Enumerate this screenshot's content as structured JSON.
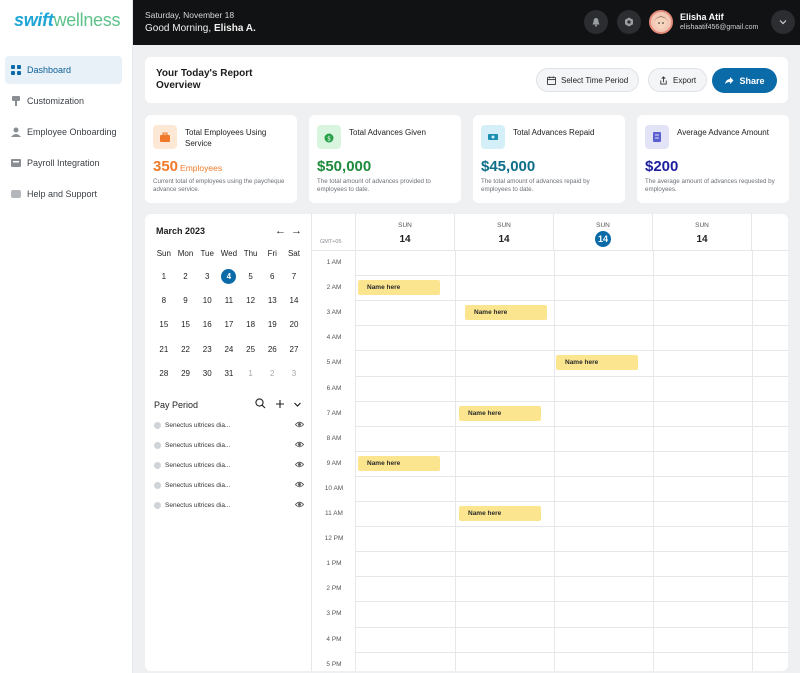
{
  "brand": {
    "part1": "swift",
    "part2": "wellness"
  },
  "sidebar": {
    "items": [
      {
        "label": "Dashboard",
        "icon": "grid-icon"
      },
      {
        "label": "Customization",
        "icon": "brush-icon"
      },
      {
        "label": "Employee Onboarding",
        "icon": "user-icon"
      },
      {
        "label": "Payroll Integration",
        "icon": "plug-icon"
      },
      {
        "label": "Help and Support",
        "icon": "support-icon"
      }
    ]
  },
  "topbar": {
    "date": "Saturday, November 18",
    "greeting": "Good Morning,",
    "name": "Elisha A.",
    "user_name": "Elisha Atif",
    "user_email": "elishaatif456@gmail.com"
  },
  "report": {
    "title": "Your Today's Report Overview",
    "time_period": "Select Time Period",
    "export": "Export",
    "share": "Share"
  },
  "cards": [
    {
      "label": "Total Employees Using Service",
      "value": "350",
      "unit": "Employees",
      "desc": "Current total of employees using the paycheque advance service.",
      "color": "#f07a2a",
      "icon_bg": "#fde8d6"
    },
    {
      "label": "Total Advances Given",
      "value": "$50,000",
      "unit": "",
      "desc": "The total amount of advances provided to employees to date.",
      "color": "#1e8a3c",
      "icon_bg": "#d9f5df"
    },
    {
      "label": "Total Advances Repaid",
      "value": "$45,000",
      "unit": "",
      "desc": "The total amount of advances repaid by employees to date.",
      "color": "#0e6e8a",
      "icon_bg": "#d4eff7"
    },
    {
      "label": "Average Advance Amount",
      "value": "$200",
      "unit": "",
      "desc": "The average amount of advances requested by employees.",
      "color": "#1b1f9e",
      "icon_bg": "#e3e3f7"
    }
  ],
  "calendar": {
    "month": "March 2023",
    "weekdays": [
      "Sun",
      "Mon",
      "Tue",
      "Wed",
      "Thu",
      "Fri",
      "Sat"
    ],
    "weeks": [
      [
        "1",
        "2",
        "3",
        "4",
        "5",
        "6",
        "7"
      ],
      [
        "8",
        "9",
        "10",
        "11",
        "12",
        "13",
        "14"
      ],
      [
        "15",
        "15",
        "16",
        "17",
        "18",
        "19",
        "20"
      ],
      [
        "21",
        "22",
        "23",
        "24",
        "25",
        "26",
        "27"
      ],
      [
        "28",
        "29",
        "30",
        "31",
        "1",
        "2",
        "3"
      ]
    ],
    "selected": "4",
    "dim_last_row_from": 4
  },
  "pay_period": {
    "title": "Pay Period",
    "items": [
      "Senectus ultrices dia...",
      "Senectus ultrices dia...",
      "Senectus ultrices dia...",
      "Senectus ultrices dia...",
      "Senectus ultrices dia..."
    ]
  },
  "week": {
    "timezone": "GMT+05",
    "days": [
      {
        "name": "SUN",
        "num": "14",
        "today": false
      },
      {
        "name": "SUN",
        "num": "14",
        "today": false
      },
      {
        "name": "SUN",
        "num": "14",
        "today": true
      },
      {
        "name": "SUN",
        "num": "14",
        "today": false
      }
    ],
    "hours": [
      "1 AM",
      "2 AM",
      "3 AM",
      "4 AM",
      "5 AM",
      "6 AM",
      "7 AM",
      "8 AM",
      "9 AM",
      "10 AM",
      "11 AM",
      "12 PM",
      "1 PM",
      "2 PM",
      "3 PM",
      "4 PM",
      "5 PM"
    ],
    "events": [
      {
        "label": "Name here",
        "day": 0,
        "hour": "2 AM"
      },
      {
        "label": "Name here",
        "day": 1,
        "hour": "3 AM"
      },
      {
        "label": "Name here",
        "day": 2,
        "hour": "5 AM"
      },
      {
        "label": "Name here",
        "day": 1,
        "hour": "7 AM"
      },
      {
        "label": "Name here",
        "day": 0,
        "hour": "9 AM"
      },
      {
        "label": "Name here",
        "day": 1,
        "hour": "11 AM"
      }
    ]
  }
}
